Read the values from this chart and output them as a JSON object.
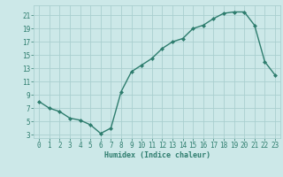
{
  "x": [
    0,
    1,
    2,
    3,
    4,
    5,
    6,
    7,
    8,
    9,
    10,
    11,
    12,
    13,
    14,
    15,
    16,
    17,
    18,
    19,
    20,
    21,
    22,
    23
  ],
  "y": [
    8,
    7,
    6.5,
    5.5,
    5.2,
    4.5,
    3.2,
    4,
    9.5,
    12.5,
    13.5,
    14.5,
    16,
    17,
    17.5,
    19,
    19.5,
    20.5,
    21.3,
    21.5,
    21.5,
    19.5,
    14,
    12
  ],
  "line_color": "#2e7d6e",
  "marker": "D",
  "marker_size": 2.0,
  "bg_color": "#cce8e8",
  "grid_color": "#aacfcf",
  "xlabel": "Humidex (Indice chaleur)",
  "ylim": [
    2.5,
    22.5
  ],
  "xlim": [
    -0.5,
    23.5
  ],
  "yticks": [
    3,
    5,
    7,
    9,
    11,
    13,
    15,
    17,
    19,
    21
  ],
  "xticks": [
    0,
    1,
    2,
    3,
    4,
    5,
    6,
    7,
    8,
    9,
    10,
    11,
    12,
    13,
    14,
    15,
    16,
    17,
    18,
    19,
    20,
    21,
    22,
    23
  ],
  "xlabel_fontsize": 6.0,
  "tick_fontsize": 5.5,
  "line_width": 1.0
}
